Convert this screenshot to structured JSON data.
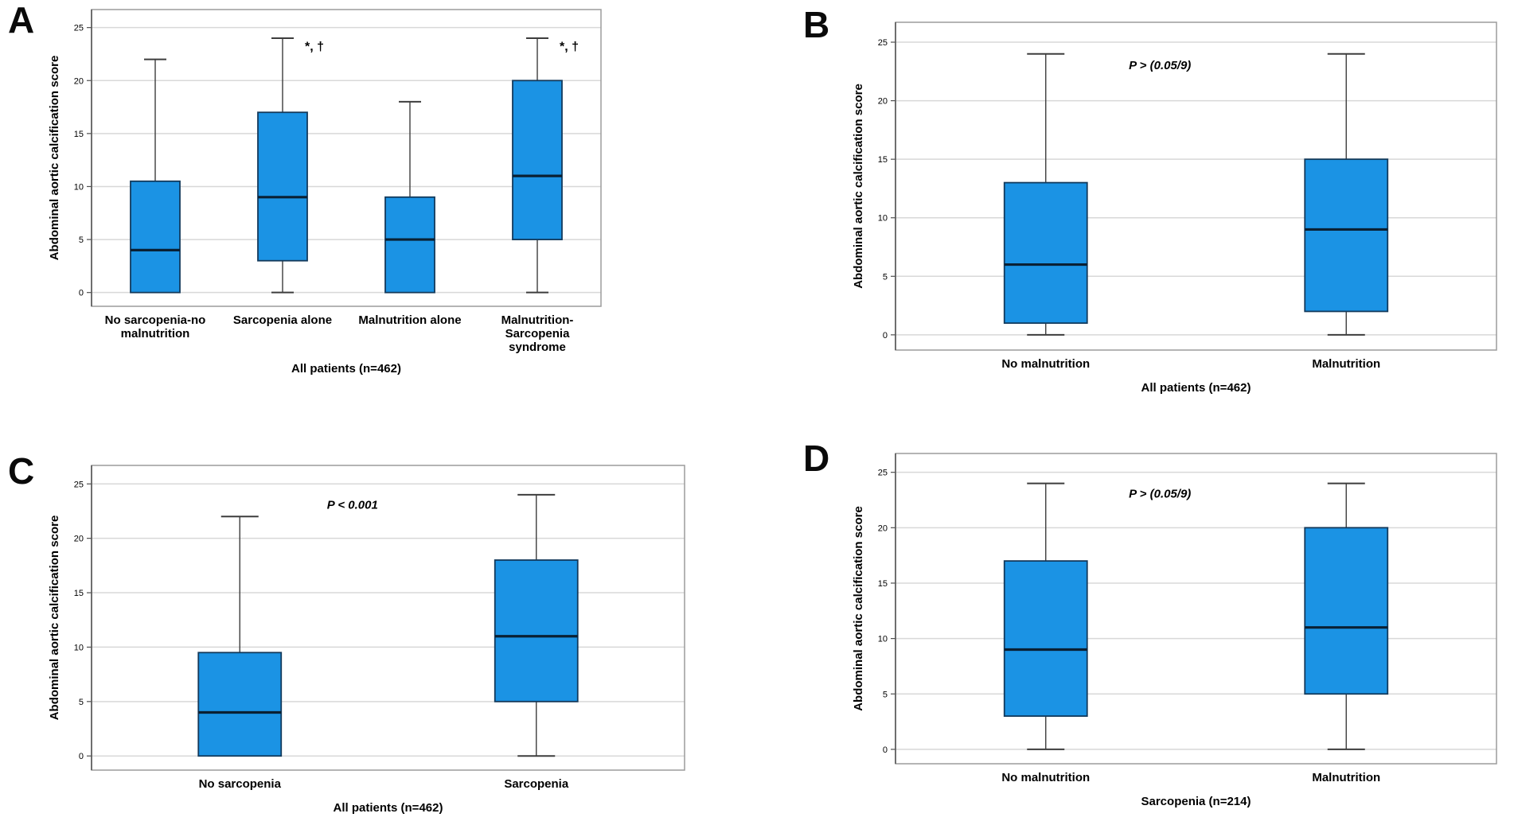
{
  "style": {
    "background": "#ffffff",
    "box_fill": "#1B93E4",
    "box_border": "#133A5C",
    "median_color": "#0A2033",
    "whisker_color": "#3D3D3D",
    "grid_color": "#D8D8D8",
    "frame_color": "#9C9C9C",
    "axis_line_color": "#4F4F4F",
    "text_color": "#000000"
  },
  "chart_data": [
    {
      "panel": "A",
      "type": "box",
      "xlabel": "All patients (n=462)",
      "ylabel": "Abdominal aortic calcification score",
      "yticks": [
        0,
        5,
        10,
        15,
        20,
        25
      ],
      "ylim": [
        0,
        25
      ],
      "grid": true,
      "p_annotation": "",
      "boxes": [
        {
          "category": "No sarcopenia-no malnutrition",
          "label_lines": [
            "No sarcopenia-no",
            "malnutrition"
          ],
          "whisker_low": 0,
          "q1": 0,
          "median": 4,
          "q3": 10.5,
          "whisker_high": 22,
          "annotation": ""
        },
        {
          "category": "Sarcopenia alone",
          "label_lines": [
            "Sarcopenia alone"
          ],
          "whisker_low": 0,
          "q1": 3,
          "median": 9,
          "q3": 17,
          "whisker_high": 24,
          "annotation": "*, †"
        },
        {
          "category": "Malnutrition alone",
          "label_lines": [
            "Malnutrition alone"
          ],
          "whisker_low": 0,
          "q1": 0,
          "median": 5,
          "q3": 9,
          "whisker_high": 18,
          "annotation": ""
        },
        {
          "category": "Malnutrition-Sarcopenia syndrome",
          "label_lines": [
            "Malnutrition-",
            "Sarcopenia",
            "syndrome"
          ],
          "whisker_low": 0,
          "q1": 5,
          "median": 11,
          "q3": 20,
          "whisker_high": 24,
          "annotation": "*, †"
        }
      ]
    },
    {
      "panel": "B",
      "type": "box",
      "xlabel": "All patients (n=462)",
      "ylabel": "Abdominal aortic calcification score",
      "yticks": [
        0,
        5,
        10,
        15,
        20,
        25
      ],
      "ylim": [
        0,
        25
      ],
      "grid": true,
      "p_annotation": "P > (0.05/9)",
      "boxes": [
        {
          "category": "No malnutrition",
          "label_lines": [
            "No malnutrition"
          ],
          "whisker_low": 0,
          "q1": 1,
          "median": 6,
          "q3": 13,
          "whisker_high": 24,
          "annotation": ""
        },
        {
          "category": "Malnutrition",
          "label_lines": [
            "Malnutrition"
          ],
          "whisker_low": 0,
          "q1": 2,
          "median": 9,
          "q3": 15,
          "whisker_high": 24,
          "annotation": ""
        }
      ]
    },
    {
      "panel": "C",
      "type": "box",
      "xlabel": "All patients (n=462)",
      "ylabel": "Abdominal aortic calcification score",
      "yticks": [
        0,
        5,
        10,
        15,
        20,
        25
      ],
      "ylim": [
        0,
        25
      ],
      "grid": true,
      "p_annotation": "P < 0.001",
      "boxes": [
        {
          "category": "No sarcopenia",
          "label_lines": [
            "No sarcopenia"
          ],
          "whisker_low": 0,
          "q1": 0,
          "median": 4,
          "q3": 9.5,
          "whisker_high": 22,
          "annotation": ""
        },
        {
          "category": "Sarcopenia",
          "label_lines": [
            "Sarcopenia"
          ],
          "whisker_low": 0,
          "q1": 5,
          "median": 11,
          "q3": 18,
          "whisker_high": 24,
          "annotation": ""
        }
      ]
    },
    {
      "panel": "D",
      "type": "box",
      "xlabel": "Sarcopenia (n=214)",
      "ylabel": "Abdominal aortic calcification score",
      "yticks": [
        0,
        5,
        10,
        15,
        20,
        25
      ],
      "ylim": [
        0,
        25
      ],
      "grid": true,
      "p_annotation": "P > (0.05/9)",
      "boxes": [
        {
          "category": "No malnutrition",
          "label_lines": [
            "No malnutrition"
          ],
          "whisker_low": 0,
          "q1": 3,
          "median": 9,
          "q3": 17,
          "whisker_high": 24,
          "annotation": ""
        },
        {
          "category": "Malnutrition",
          "label_lines": [
            "Malnutrition"
          ],
          "whisker_low": 0,
          "q1": 5,
          "median": 11,
          "q3": 20,
          "whisker_high": 24,
          "annotation": ""
        }
      ]
    }
  ]
}
